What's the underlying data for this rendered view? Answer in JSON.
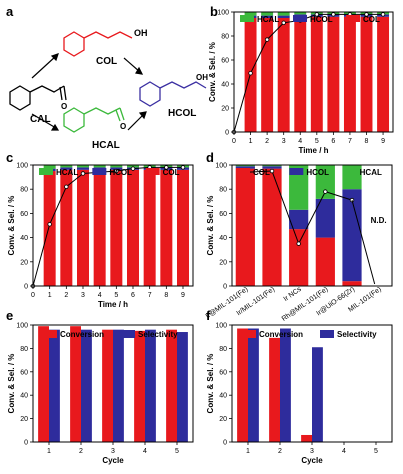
{
  "panel_labels": [
    "a",
    "b",
    "c",
    "d",
    "e",
    "f"
  ],
  "scheme": {
    "molecules": [
      {
        "label": "CAL",
        "color": "#000000"
      },
      {
        "label": "COL",
        "color": "#e8191d"
      },
      {
        "label": "HCOL",
        "color": "#3b2fa2"
      },
      {
        "label": "HCAL",
        "color": "#3cb93c"
      }
    ],
    "oh_label": "OH",
    "o_label": "O"
  },
  "colors": {
    "COL": "#e8191d",
    "HCOL": "#2e2c9c",
    "HCAL": "#3cb93c",
    "Conversion": "#e8191d",
    "Selectivity": "#2e2c9c"
  },
  "chart_data": [
    {
      "panel": "b",
      "type": "bar",
      "xlabel": "Time / h",
      "ylabel": "Conv. & Sel. / %",
      "ylim": [
        0,
        100
      ],
      "xlim": [
        0,
        9.6
      ],
      "x_ticks": [
        "0",
        "1",
        "2",
        "3",
        "4",
        "5",
        "6",
        "7",
        "8",
        "9"
      ],
      "y_ticks": [
        "0",
        "20",
        "40",
        "60",
        "80",
        "100"
      ],
      "legend": [
        "HCAL",
        "HCOL",
        "COL"
      ],
      "categories": [
        1,
        2,
        3,
        4,
        5,
        6,
        7,
        8,
        9
      ],
      "series": [
        {
          "name": "COL",
          "values": [
            95,
            95,
            95,
            96,
            96,
            96,
            96,
            96,
            96
          ]
        },
        {
          "name": "HCOL",
          "values": [
            2,
            2,
            2,
            2,
            2,
            2,
            2,
            2,
            2
          ]
        },
        {
          "name": "HCAL",
          "values": [
            3,
            3,
            3,
            2,
            2,
            2,
            2,
            2,
            2
          ]
        }
      ],
      "conversion": {
        "x": [
          0,
          1,
          2,
          3,
          4,
          5,
          6,
          7,
          8,
          9
        ],
        "y": [
          0,
          49,
          77,
          91,
          93,
          98,
          98,
          98,
          98,
          98
        ]
      }
    },
    {
      "panel": "c",
      "type": "bar",
      "xlabel": "Time / h",
      "ylabel": "Conv. & Sel. / %",
      "ylim": [
        0,
        100
      ],
      "xlim": [
        0,
        9.6
      ],
      "x_ticks": [
        "0",
        "1",
        "2",
        "3",
        "4",
        "5",
        "6",
        "7",
        "8",
        "9"
      ],
      "y_ticks": [
        "0",
        "20",
        "40",
        "60",
        "80",
        "100"
      ],
      "legend": [
        "HCAL",
        "HCOL",
        "COL"
      ],
      "categories": [
        1,
        2,
        3,
        4,
        5,
        6,
        7,
        8,
        9
      ],
      "series": [
        {
          "name": "COL",
          "values": [
            95,
            96,
            96,
            96,
            96,
            96,
            96,
            96,
            96
          ]
        },
        {
          "name": "HCOL",
          "values": [
            2,
            2,
            2,
            2,
            2,
            2,
            2,
            2,
            2
          ]
        },
        {
          "name": "HCAL",
          "values": [
            3,
            2,
            2,
            2,
            2,
            2,
            2,
            2,
            2
          ]
        }
      ],
      "conversion": {
        "x": [
          0,
          1,
          2,
          3,
          4,
          5,
          6,
          7,
          8,
          9
        ],
        "y": [
          0,
          51,
          82,
          93,
          94,
          95,
          97,
          98,
          98,
          98
        ]
      }
    },
    {
      "panel": "d",
      "type": "bar",
      "ylabel": "Conv. & Sel. / %",
      "ylim": [
        0,
        100
      ],
      "y_ticks": [
        "0",
        "20",
        "40",
        "60",
        "80",
        "100"
      ],
      "legend": [
        "COL",
        "HCOL",
        "HCAL"
      ],
      "categories": [
        "Ir@MIL-101(Fe)",
        "Ir/MIL-101(Fe)",
        "Ir NCs",
        "Rh@MIL-101(Fe)",
        "Ir@UiO-66(Zr)",
        "MIL-101(Fe)"
      ],
      "series": [
        {
          "name": "COL",
          "values": [
            97,
            97,
            47,
            40,
            4,
            0
          ]
        },
        {
          "name": "HCOL",
          "values": [
            2,
            2,
            16,
            32,
            76,
            0
          ]
        },
        {
          "name": "HCAL",
          "values": [
            1,
            1,
            37,
            28,
            20,
            0
          ]
        }
      ],
      "conversion": {
        "x": [
          0,
          1,
          2,
          3,
          4
        ],
        "y": [
          94,
          95,
          35,
          78,
          71
        ]
      },
      "annotation": "N.D."
    },
    {
      "panel": "e",
      "type": "bar",
      "xlabel": "Cycle",
      "ylabel": "Conv. & Sel. / %",
      "ylim": [
        0,
        100
      ],
      "y_ticks": [
        "0",
        "20",
        "40",
        "60",
        "80",
        "100"
      ],
      "categories": [
        "1",
        "2",
        "3",
        "4",
        "5"
      ],
      "series": [
        {
          "name": "Conversion",
          "values": [
            99,
            99,
            96,
            95,
            96
          ]
        },
        {
          "name": "Selectivity",
          "values": [
            96,
            96,
            96,
            96,
            94
          ]
        }
      ]
    },
    {
      "panel": "f",
      "type": "bar",
      "xlabel": "Cycle",
      "ylabel": "Conv. & Sel. / %",
      "ylim": [
        0,
        100
      ],
      "y_ticks": [
        "0",
        "20",
        "40",
        "60",
        "80",
        "100"
      ],
      "categories": [
        "1",
        "2",
        "3",
        "4",
        "5"
      ],
      "series": [
        {
          "name": "Conversion",
          "values": [
            97,
            89,
            6,
            0,
            0
          ]
        },
        {
          "name": "Selectivity",
          "values": [
            97,
            97,
            81,
            0,
            0
          ]
        }
      ]
    }
  ]
}
